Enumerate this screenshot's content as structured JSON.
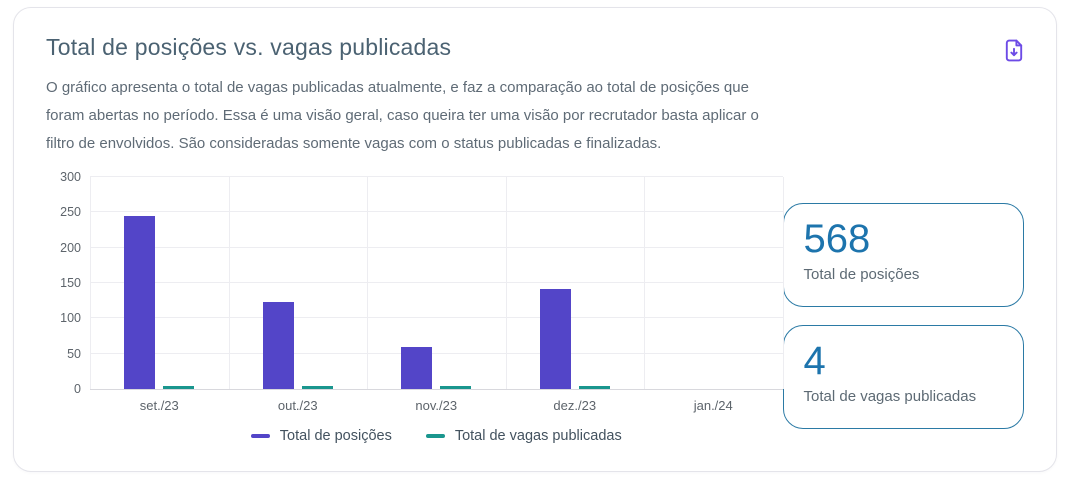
{
  "card": {
    "title": "Total de posições vs. vagas publicadas",
    "description": "O gráfico apresenta o total de vagas publicadas atualmente, e faz a comparação ao total de posições que foram abertas no período. Essa é uma visão geral, caso queira ter uma visão por recrutador basta aplicar o filtro de envolvidos. São consideradas somente vagas com o status publicadas e finalizadas."
  },
  "toolbar": {
    "download_icon": "file-download-icon",
    "download_color": "#6d4be6"
  },
  "chart_data": {
    "type": "bar",
    "title": "Total de posições vs. vagas publicadas",
    "categories": [
      "set./23",
      "out./23",
      "nov./23",
      "dez./23",
      "jan./24"
    ],
    "series": [
      {
        "name": "Total de posições",
        "color": "#5345c8",
        "values": [
          245,
          123,
          59,
          141,
          0
        ]
      },
      {
        "name": "Total de vagas publicadas",
        "color": "#1a968e",
        "values": [
          1,
          1,
          1,
          1,
          0
        ]
      }
    ],
    "xlabel": "",
    "ylabel": "",
    "ylim": [
      0,
      300
    ],
    "y_ticks": [
      0,
      50,
      100,
      150,
      200,
      250,
      300
    ],
    "grid": true,
    "legend_position": "bottom"
  },
  "stats": [
    {
      "value": "568",
      "label": "Total de posições",
      "accent": "#1d74ad",
      "border": "#2b7aa5"
    },
    {
      "value": "4",
      "label": "Total de vagas publicadas",
      "accent": "#1d74ad",
      "border": "#2b7aa5"
    }
  ],
  "colors": {
    "title": "#4b6272",
    "description": "#5f6b76",
    "grid": "#ededf1",
    "axis_label": "#5d646b"
  }
}
